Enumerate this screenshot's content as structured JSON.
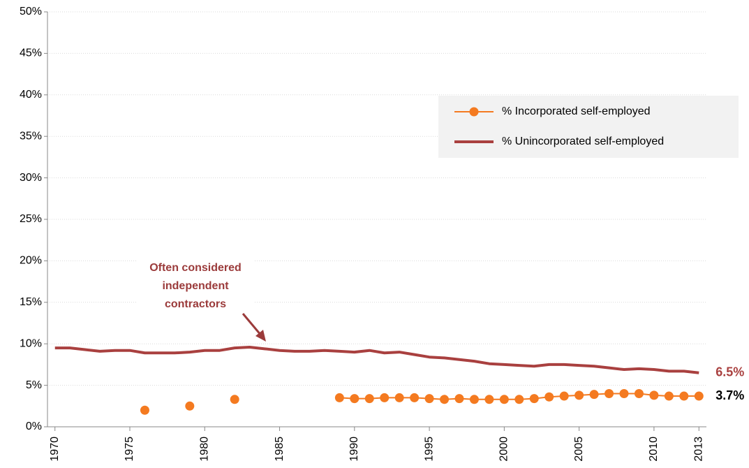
{
  "chart_data": {
    "type": "line",
    "x": [
      1970,
      1971,
      1972,
      1973,
      1974,
      1975,
      1976,
      1977,
      1978,
      1979,
      1980,
      1981,
      1982,
      1983,
      1984,
      1985,
      1986,
      1987,
      1988,
      1989,
      1990,
      1991,
      1992,
      1993,
      1994,
      1995,
      1996,
      1997,
      1998,
      1999,
      2000,
      2001,
      2002,
      2003,
      2004,
      2005,
      2006,
      2007,
      2008,
      2009,
      2010,
      2011,
      2012,
      2013
    ],
    "series": [
      {
        "name": "% Incorporated self-employed",
        "color": "#f47a20",
        "marker": true,
        "values": [
          null,
          null,
          null,
          null,
          null,
          null,
          2.0,
          null,
          null,
          2.5,
          null,
          null,
          3.3,
          null,
          null,
          null,
          null,
          null,
          null,
          3.5,
          3.4,
          3.4,
          3.5,
          3.5,
          3.5,
          3.4,
          3.3,
          3.4,
          3.3,
          3.3,
          3.3,
          3.3,
          3.4,
          3.6,
          3.7,
          3.8,
          3.9,
          4.0,
          4.0,
          4.0,
          3.8,
          3.7,
          3.7,
          3.7
        ],
        "value_labels": [
          null,
          null,
          null,
          null,
          null,
          null,
          null,
          null,
          null,
          null,
          null,
          null,
          null,
          null,
          null,
          null,
          null,
          null,
          null,
          null,
          null,
          null,
          null,
          null,
          null,
          null,
          null,
          null,
          null,
          null,
          null,
          null,
          null,
          null,
          null,
          null,
          null,
          null,
          null,
          null,
          null,
          null,
          null,
          "3.7%"
        ],
        "label_color": "#000000"
      },
      {
        "name": "% Unincorporated self-employed",
        "color": "#a9403f",
        "marker": false,
        "values": [
          9.5,
          9.5,
          9.3,
          9.1,
          9.2,
          9.2,
          8.9,
          8.9,
          8.9,
          9.0,
          9.2,
          9.2,
          9.5,
          9.6,
          9.4,
          9.2,
          9.1,
          9.1,
          9.2,
          9.1,
          9.0,
          9.2,
          8.9,
          9.0,
          8.7,
          8.4,
          8.3,
          8.1,
          7.9,
          7.6,
          7.5,
          7.4,
          7.3,
          7.5,
          7.5,
          7.4,
          7.3,
          7.1,
          6.9,
          7.0,
          6.9,
          6.7,
          6.7,
          6.5
        ],
        "value_labels": [
          null,
          null,
          null,
          null,
          null,
          null,
          null,
          null,
          null,
          null,
          null,
          null,
          null,
          null,
          null,
          null,
          null,
          null,
          null,
          null,
          null,
          null,
          null,
          null,
          null,
          null,
          null,
          null,
          null,
          null,
          null,
          null,
          null,
          null,
          null,
          null,
          null,
          null,
          null,
          null,
          null,
          null,
          null,
          "6.5%"
        ],
        "label_color": "#a9403f"
      }
    ],
    "xlim": [
      1969.5,
      2013.5
    ],
    "xticks": [
      1970,
      1975,
      1980,
      1985,
      1990,
      1995,
      2000,
      2005,
      2010,
      2013
    ],
    "ylim": [
      0,
      50
    ],
    "yticks": [
      {
        "value": 0,
        "label": "0%"
      },
      {
        "value": 5,
        "label": "5%"
      },
      {
        "value": 10,
        "label": "10%"
      },
      {
        "value": 15,
        "label": "15%"
      },
      {
        "value": 20,
        "label": "20%"
      },
      {
        "value": 25,
        "label": "25%"
      },
      {
        "value": 30,
        "label": "30%"
      },
      {
        "value": 35,
        "label": "35%"
      },
      {
        "value": 40,
        "label": "40%"
      },
      {
        "value": 45,
        "label": "45%"
      },
      {
        "value": 50,
        "label": "50%"
      }
    ],
    "grid": true,
    "legend": "upper-right",
    "annotation": [
      "Often considered",
      "independent",
      "contractors"
    ]
  }
}
